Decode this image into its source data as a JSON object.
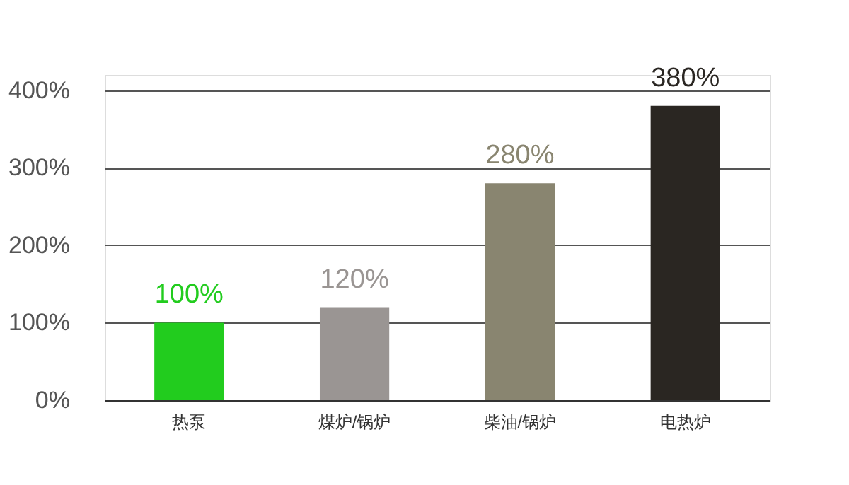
{
  "chart_data": {
    "type": "bar",
    "categories": [
      "热泵",
      "煤炉/锅炉",
      "柴油/锅炉",
      "电热炉"
    ],
    "values": [
      100,
      120,
      280,
      380
    ],
    "colors": [
      "#22cc1e",
      "#9a9593",
      "#898570",
      "#2a2622"
    ],
    "value_labels": [
      "100%",
      "120%",
      "280%",
      "380%"
    ],
    "ylim": [
      0,
      420
    ],
    "yticks": [
      {
        "value": 0,
        "label": "0%"
      },
      {
        "value": 100,
        "label": "100%"
      },
      {
        "value": 200,
        "label": "200%"
      },
      {
        "value": 300,
        "label": "300%"
      },
      {
        "value": 400,
        "label": "400%"
      }
    ],
    "grid": "y"
  }
}
